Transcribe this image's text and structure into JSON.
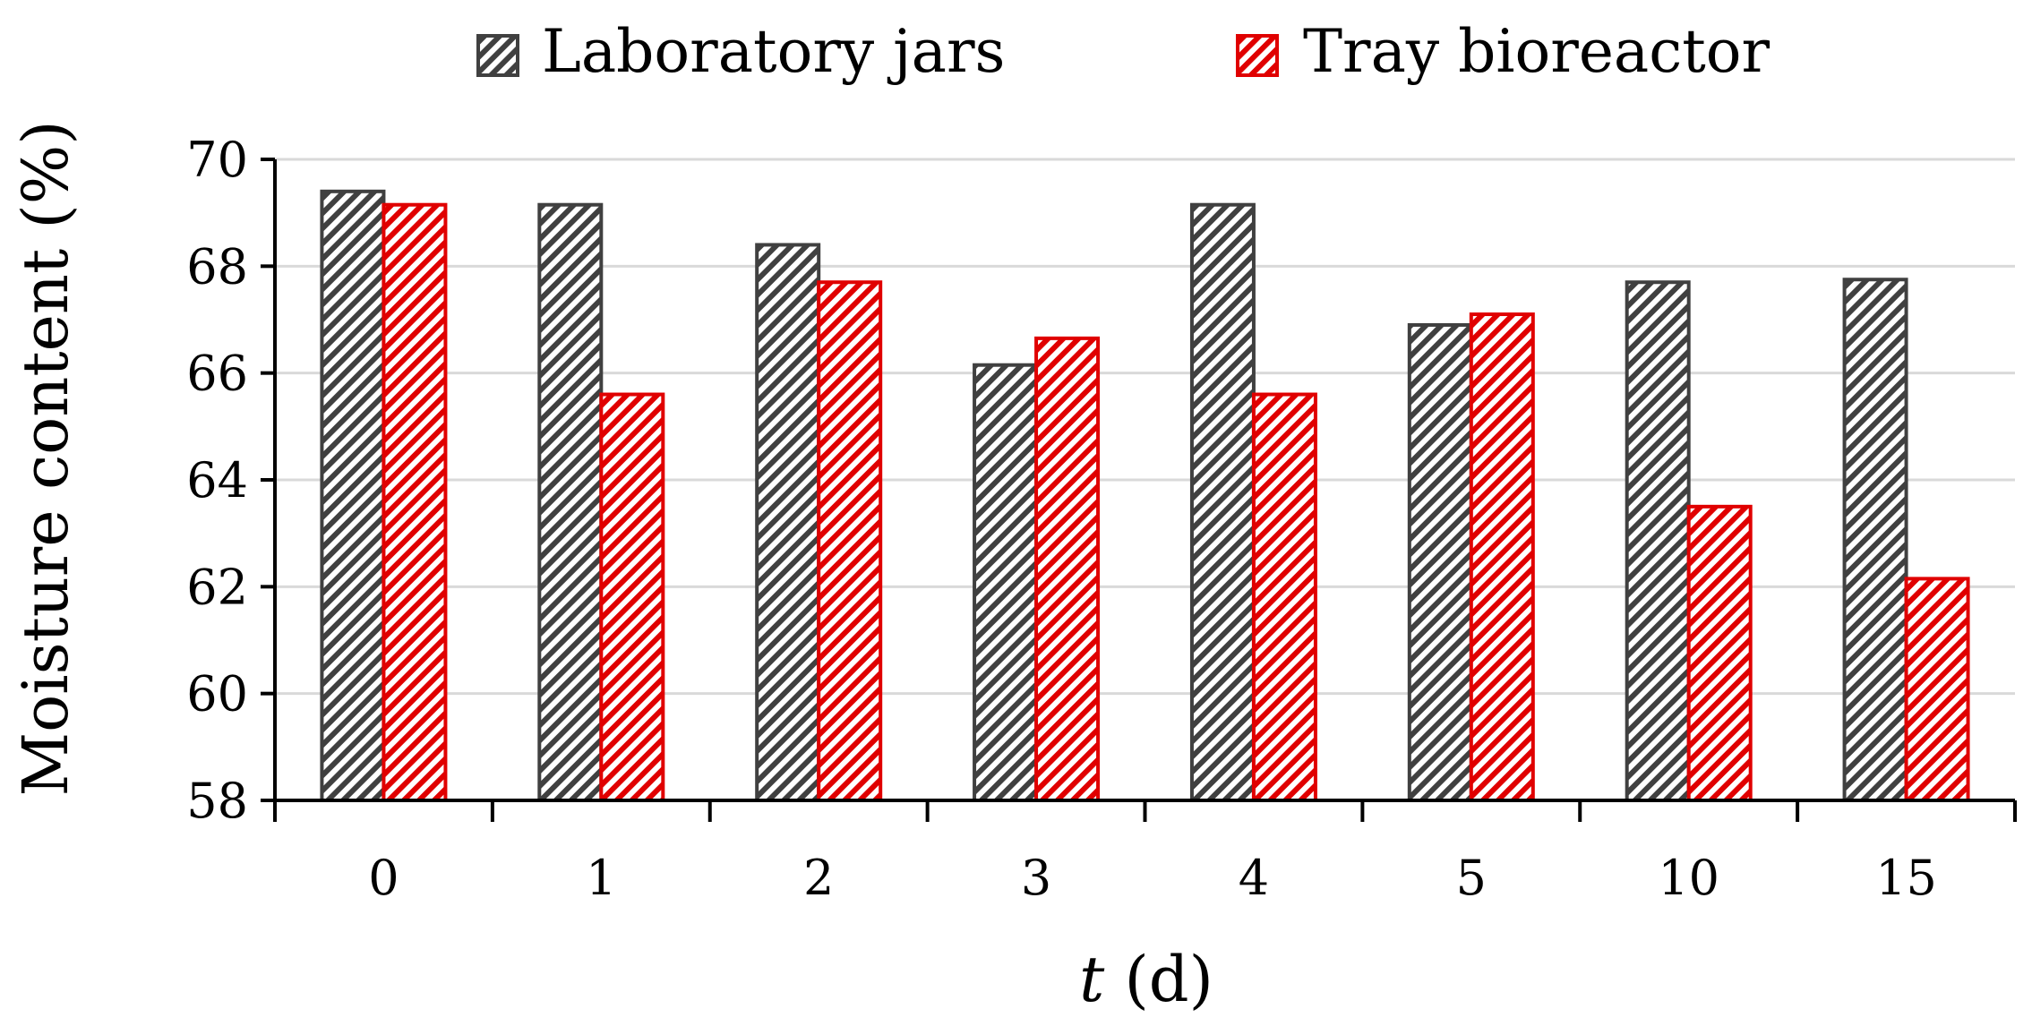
{
  "chart_data": {
    "type": "bar",
    "title": "",
    "xlabel": {
      "variable": "t",
      "unit": " (d)"
    },
    "ylabel": "Moisture content (%)",
    "ylim": [
      58,
      70
    ],
    "yticks": [
      58,
      60,
      62,
      64,
      66,
      68,
      70
    ],
    "categories": [
      "0",
      "1",
      "2",
      "3",
      "4",
      "5",
      "10",
      "15"
    ],
    "grid": true,
    "legend_position": "top",
    "series": [
      {
        "name": "Laboratory jars",
        "color": "#404040",
        "pattern": "diagonal-hatch",
        "values": [
          69.4,
          69.15,
          68.4,
          66.15,
          69.15,
          66.9,
          67.7,
          67.75
        ]
      },
      {
        "name": "Tray bioreactor",
        "color": "#e00000",
        "pattern": "diagonal-hatch",
        "values": [
          69.15,
          65.6,
          67.7,
          66.65,
          65.6,
          67.1,
          63.5,
          62.15
        ]
      }
    ]
  }
}
